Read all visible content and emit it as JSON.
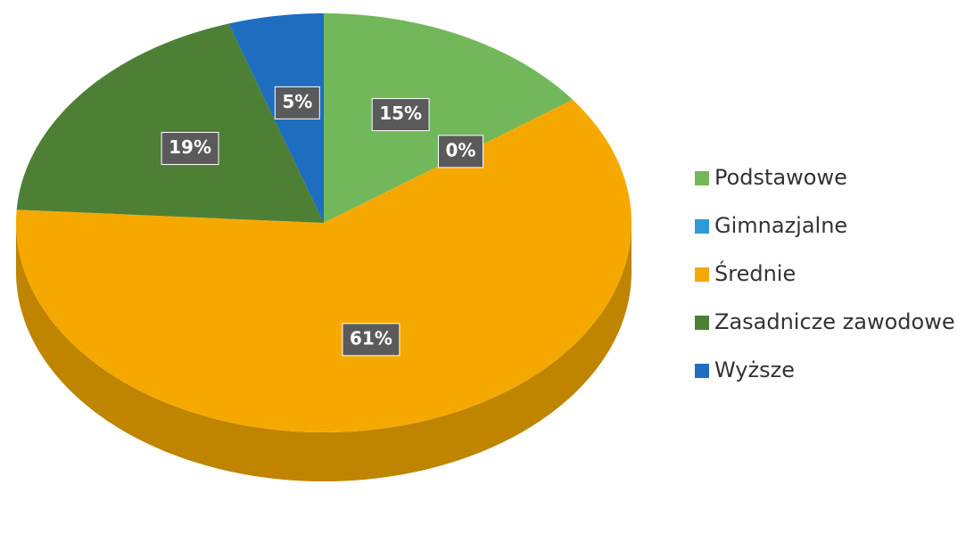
{
  "chart_data": {
    "type": "pie",
    "categories": [
      "Podstawowe",
      "Gimnazjalne",
      "Średnie",
      "Zasadnicze zawodowe",
      "Wyższe"
    ],
    "values": [
      15,
      0,
      61,
      19,
      5
    ],
    "value_labels": [
      "15%",
      "0%",
      "61%",
      "19%",
      "5%"
    ],
    "colors": [
      "#72b85a",
      "#2f9ad8",
      "#f5a900",
      "#4d8035",
      "#1e6dbf"
    ],
    "legend": "right"
  }
}
